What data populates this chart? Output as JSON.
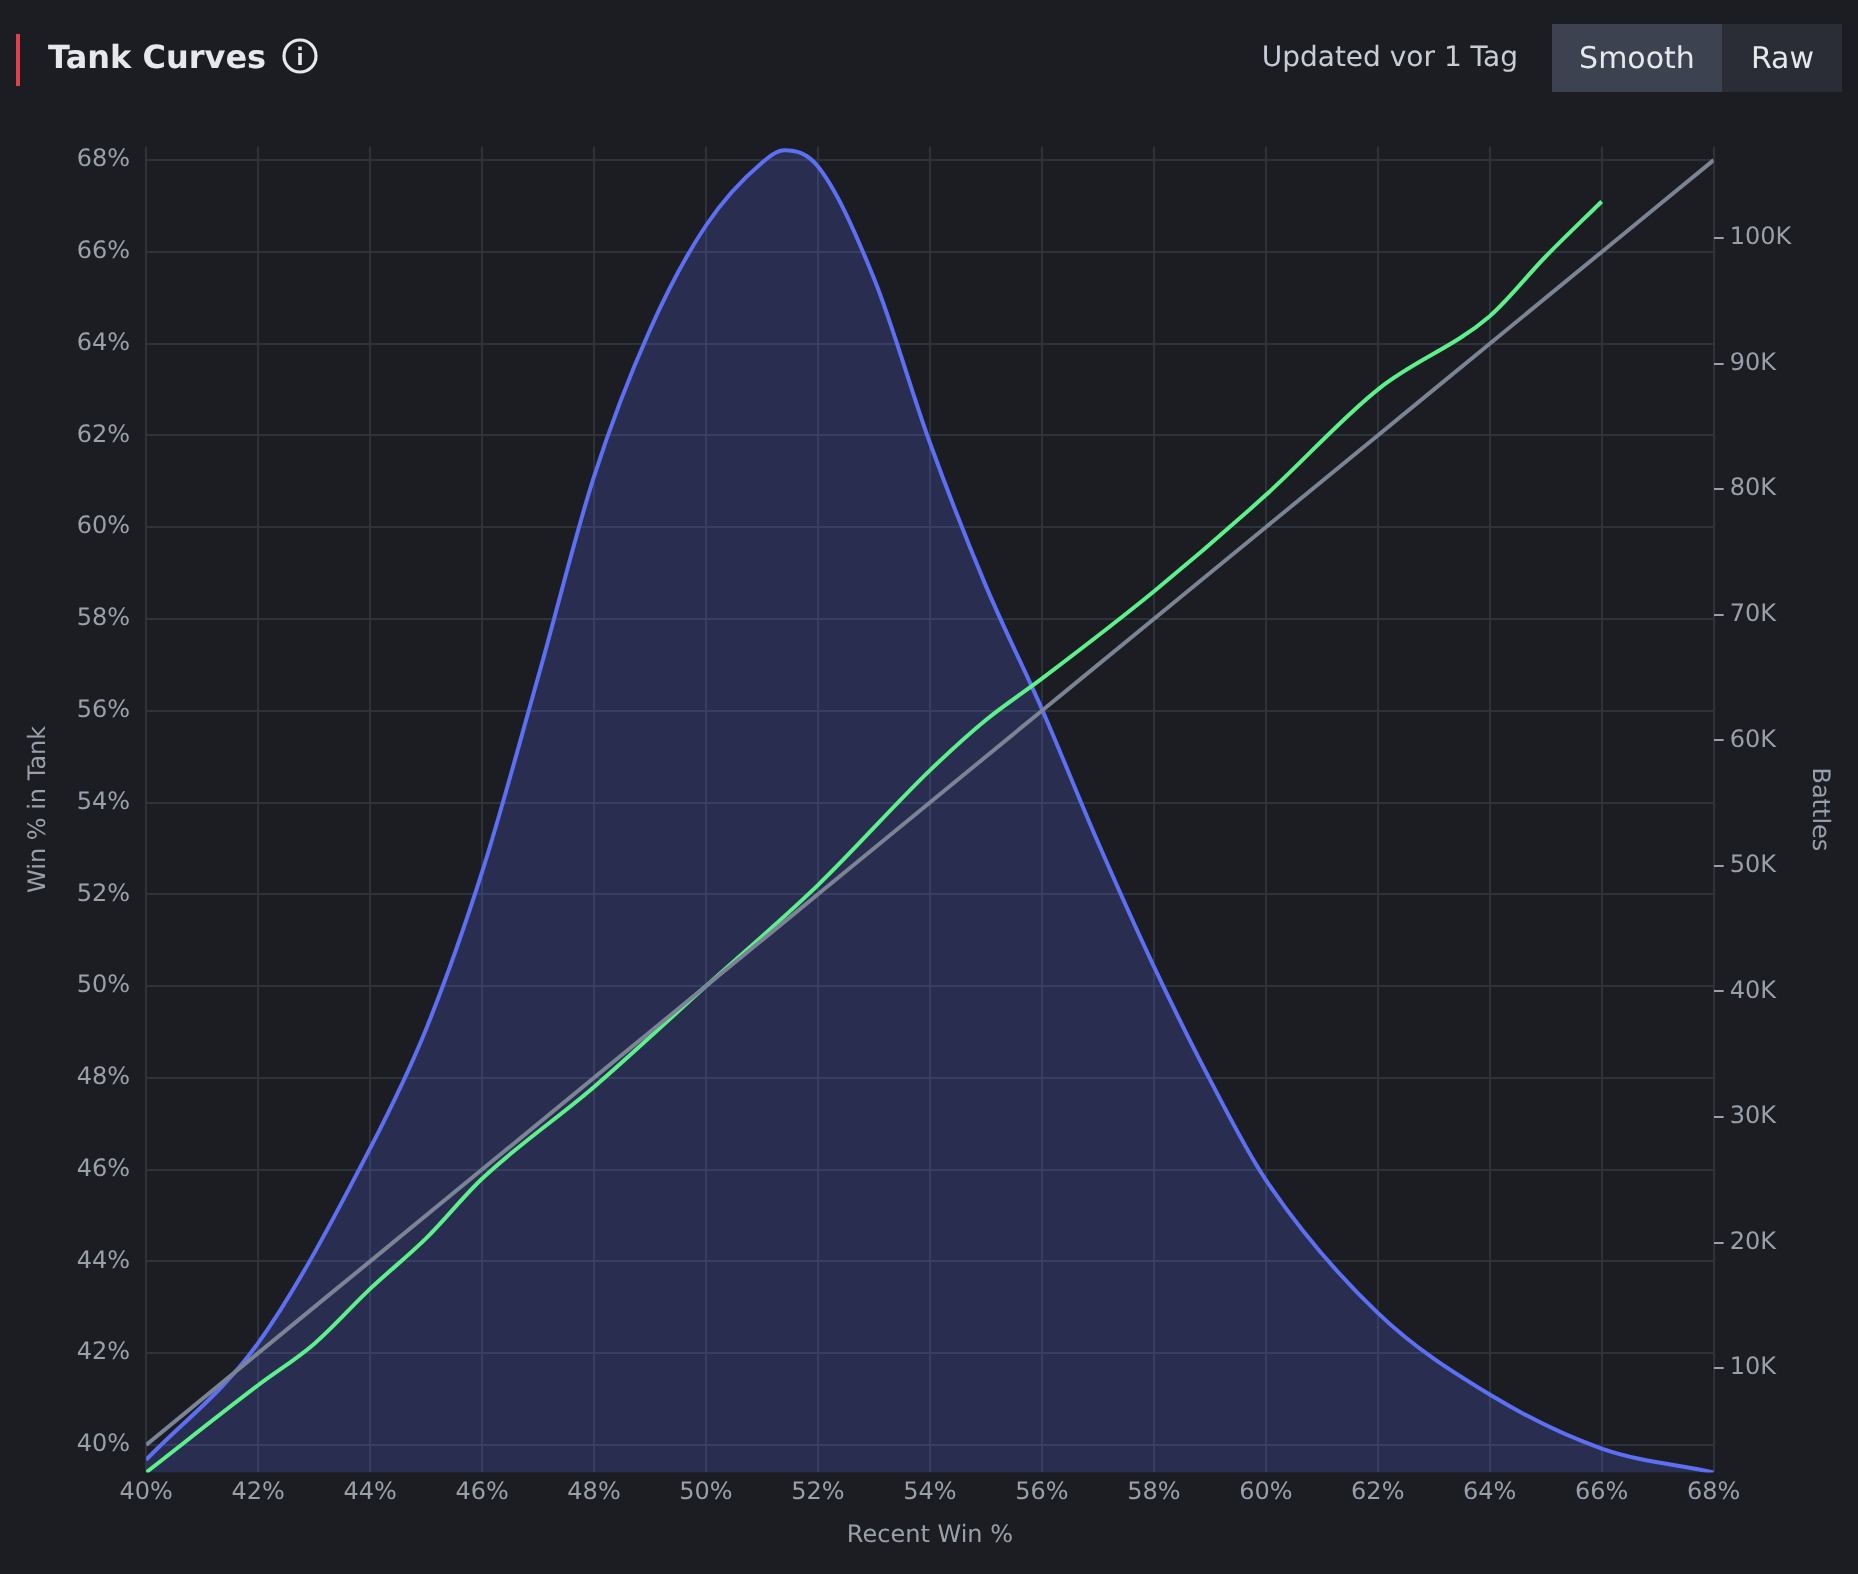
{
  "chart_data": {
    "type": "line",
    "title": "Tank Curves",
    "subtitle": "Updated vor 1 Tag",
    "annotations": [
      "Smooth",
      "Raw"
    ],
    "xlabel": "Recent Win %",
    "ylabel": "Win % in Tank",
    "y2label": "Battles",
    "xlim": [
      40,
      68
    ],
    "xticks": [
      {
        "value": 40,
        "label": "40%"
      },
      {
        "value": 42,
        "label": "42%"
      },
      {
        "value": 44,
        "label": "44%"
      },
      {
        "value": 46,
        "label": "46%"
      },
      {
        "value": 48,
        "label": "48%"
      },
      {
        "value": 50,
        "label": "50%"
      },
      {
        "value": 52,
        "label": "52%"
      },
      {
        "value": 54,
        "label": "54%"
      },
      {
        "value": 56,
        "label": "56%"
      },
      {
        "value": 58,
        "label": "58%"
      },
      {
        "value": 60,
        "label": "60%"
      },
      {
        "value": 62,
        "label": "62%"
      },
      {
        "value": 64,
        "label": "64%"
      },
      {
        "value": 66,
        "label": "66%"
      },
      {
        "value": 68,
        "label": "68%"
      }
    ],
    "ylim": [
      39.4,
      68.3
    ],
    "yticks": [
      {
        "value": 40,
        "label": "40%"
      },
      {
        "value": 42,
        "label": "42%"
      },
      {
        "value": 44,
        "label": "44%"
      },
      {
        "value": 46,
        "label": "46%"
      },
      {
        "value": 48,
        "label": "48%"
      },
      {
        "value": 50,
        "label": "50%"
      },
      {
        "value": 52,
        "label": "52%"
      },
      {
        "value": 54,
        "label": "54%"
      },
      {
        "value": 56,
        "label": "56%"
      },
      {
        "value": 58,
        "label": "58%"
      },
      {
        "value": 60,
        "label": "60%"
      },
      {
        "value": 62,
        "label": "62%"
      },
      {
        "value": 64,
        "label": "64%"
      },
      {
        "value": 66,
        "label": "66%"
      },
      {
        "value": 68,
        "label": "68%"
      }
    ],
    "y2lim": [
      1700,
      107300
    ],
    "y2ticks": [
      {
        "value": 10000,
        "label": "10K"
      },
      {
        "value": 20000,
        "label": "20K"
      },
      {
        "value": 30000,
        "label": "30K"
      },
      {
        "value": 40000,
        "label": "40K"
      },
      {
        "value": 50000,
        "label": "50K"
      },
      {
        "value": 60000,
        "label": "60K"
      },
      {
        "value": 70000,
        "label": "70K"
      },
      {
        "value": 80000,
        "label": "80K"
      },
      {
        "value": 90000,
        "label": "90K"
      },
      {
        "value": 100000,
        "label": "100K"
      }
    ],
    "grid": true,
    "legend": false,
    "marker": "none",
    "line_style": "solid",
    "series": [
      {
        "type": "area",
        "axis": "y2",
        "color": "#5d6ff2",
        "x": [
          40,
          42,
          44,
          45,
          46,
          47,
          48,
          49,
          50,
          51,
          51.4,
          52,
          53,
          54,
          55,
          56,
          57,
          58,
          59,
          60,
          62,
          64,
          66,
          68
        ],
        "values": [
          2700,
          12000,
          27500,
          37000,
          49500,
          65000,
          81000,
          92700,
          101000,
          106000,
          107000,
          105700,
          96800,
          83700,
          72300,
          62500,
          51900,
          42000,
          33000,
          25000,
          14400,
          7900,
          3600,
          1700
        ]
      },
      {
        "type": "line",
        "color": "#7b8494",
        "x": [
          40,
          42,
          44,
          46,
          48,
          50,
          52,
          54,
          56,
          58,
          60,
          62,
          64,
          66,
          68
        ],
        "values": [
          40,
          42,
          44,
          46,
          48,
          50,
          52,
          54,
          56,
          58,
          60,
          62,
          64,
          66,
          68
        ]
      },
      {
        "type": "line",
        "color": "#5ef08a",
        "x": [
          40,
          42,
          43,
          44,
          45,
          46,
          48,
          50,
          52,
          54,
          55,
          56,
          58,
          60,
          62,
          64,
          65,
          66
        ],
        "values": [
          39.4,
          41.3,
          42.2,
          43.4,
          44.5,
          45.8,
          47.8,
          50.0,
          52.2,
          54.7,
          55.8,
          56.7,
          58.6,
          60.7,
          63.0,
          64.6,
          65.9,
          67.1
        ]
      }
    ]
  }
}
